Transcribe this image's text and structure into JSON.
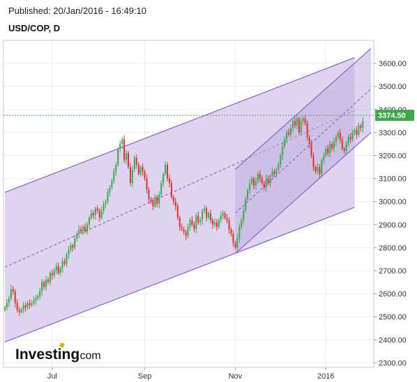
{
  "header": {
    "published": "Published: 20/Jan/2016 - 16:49:10",
    "ticker": "USD/COP, D"
  },
  "watermark": {
    "brand": "Investing",
    "suffix": ".com",
    "brand_color": "#f6a800"
  },
  "chart_data": {
    "type": "candlestick",
    "y_ticks": [
      "3600.00",
      "3500.00",
      "3400.00",
      "3300.00",
      "3200.00",
      "3100.00",
      "3000.00",
      "2900.00",
      "2800.00",
      "2700.00",
      "2600.00",
      "2500.00",
      "2400.00",
      "2300.00"
    ],
    "ylim": [
      2280,
      3700
    ],
    "x_ticks": [
      "Jul",
      "Sep",
      "Nov",
      "2016"
    ],
    "last_price": "3374.50",
    "last_price_value": 3374.5,
    "colors": {
      "up": "#3aa84b",
      "down": "#d9342b",
      "channel_line": "#8a5fc4",
      "channel_fill": "#d8cdec",
      "inner_fill": "#bfaee0",
      "price_label_bg": "#3aa84b",
      "price_line": "#3aa84b"
    },
    "big_channel": {
      "t_start": 0,
      "t_end": 170,
      "upper": [
        3040,
        3625
      ],
      "mid": [
        2715,
        3395
      ],
      "lower": [
        2390,
        2975
      ]
    },
    "small_channel": {
      "t_start": 112,
      "t_end": 178,
      "upper": [
        3140,
        3665
      ],
      "mid": [
        2950,
        3490
      ],
      "lower": [
        2775,
        3300
      ]
    },
    "candles_close": [
      2540,
      2560,
      2580,
      2620,
      2610,
      2560,
      2530,
      2520,
      2530,
      2550,
      2540,
      2560,
      2550,
      2560,
      2570,
      2580,
      2590,
      2610,
      2650,
      2630,
      2660,
      2650,
      2690,
      2680,
      2700,
      2720,
      2690,
      2710,
      2740,
      2730,
      2770,
      2790,
      2810,
      2800,
      2840,
      2860,
      2880,
      2870,
      2890,
      2870,
      2900,
      2930,
      2950,
      2940,
      2970,
      2960,
      2930,
      2960,
      2990,
      3000,
      3040,
      3060,
      3090,
      3130,
      3160,
      3230,
      3250,
      3270,
      3180,
      3210,
      3150,
      3080,
      3140,
      3190,
      3160,
      3120,
      3150,
      3130,
      3100,
      3050,
      3010,
      3000,
      2980,
      3020,
      2990,
      3030,
      3080,
      3120,
      3160,
      3100,
      3080,
      3020,
      3000,
      2980,
      2930,
      2890,
      2880,
      2870,
      2850,
      2890,
      2920,
      2900,
      2880,
      2940,
      2910,
      2920,
      2960,
      2970,
      2930,
      2950,
      2920,
      2900,
      2910,
      2890,
      2920,
      2940,
      2950,
      2930,
      2920,
      2880,
      2860,
      2820,
      2800,
      2840,
      2890,
      2920,
      2960,
      3010,
      3050,
      3080,
      3100,
      3070,
      3090,
      3120,
      3100,
      3080,
      3060,
      3100,
      3080,
      3110,
      3130,
      3120,
      3140,
      3160,
      3200,
      3240,
      3270,
      3300,
      3290,
      3320,
      3350,
      3330,
      3360,
      3300,
      3350,
      3360,
      3340,
      3280,
      3250,
      3200,
      3150,
      3130,
      3150,
      3120,
      3180,
      3200,
      3230,
      3210,
      3250,
      3230,
      3260,
      3280,
      3300,
      3270,
      3230,
      3220,
      3250,
      3280,
      3270,
      3300,
      3310,
      3290,
      3330,
      3320,
      3350
    ]
  }
}
